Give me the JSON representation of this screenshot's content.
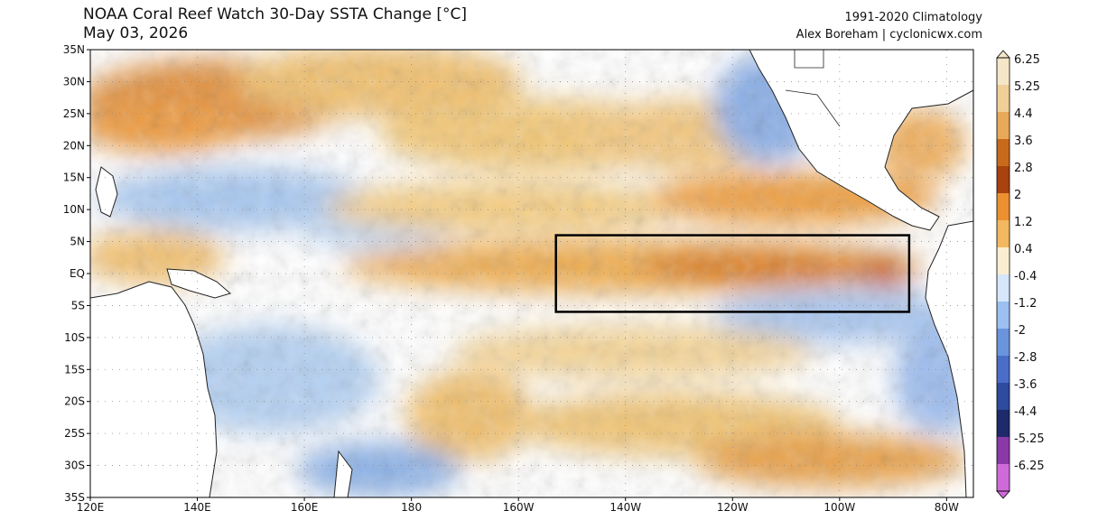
{
  "title": "NOAA Coral Reef Watch 30-Day SSTA Change [°C]",
  "date": "May 03, 2026",
  "climatology": "1991-2020 Climatology",
  "credit": "Alex Boreham | cyclonicwx.com",
  "lat_labels": [
    "35N",
    "30N",
    "25N",
    "20N",
    "15N",
    "10N",
    "5N",
    "EQ",
    "5S",
    "10S",
    "15S",
    "20S",
    "25S",
    "30S",
    "35S"
  ],
  "lon_labels": [
    "120E",
    "140E",
    "160E",
    "180",
    "160W",
    "140W",
    "120W",
    "100W",
    "80W"
  ],
  "colorbar": {
    "labels": [
      "6.25",
      "5.25",
      "4.4",
      "3.6",
      "2.8",
      "2",
      "1.2",
      "0.4",
      "-0.4",
      "-1.2",
      "-2",
      "-2.8",
      "-3.6",
      "-4.4",
      "-5.25",
      "-6.25"
    ],
    "colors": [
      "#f5e6c8",
      "#f0cf98",
      "#e8aa5a",
      "#c86a1c",
      "#a8420e",
      "#ec9030",
      "#f2b860",
      "#fbeed0",
      "#d6e6fb",
      "#9cc0f0",
      "#6a95dd",
      "#4a6ec8",
      "#2e4a9e",
      "#1e2a6a",
      "#8a3aa8",
      "#d06ad8"
    ]
  },
  "region_box": {
    "lon_west": 207,
    "lon_east": 273,
    "lat_north": 5,
    "lat_south": -5
  }
}
